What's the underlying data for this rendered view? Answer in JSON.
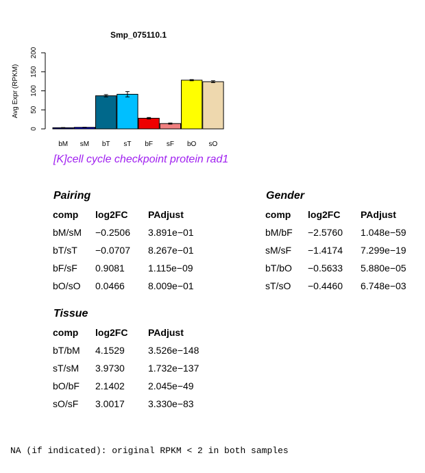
{
  "chart_data": {
    "type": "bar",
    "title": "Smp_075110.1",
    "ylabel": "Avg Expr (RPKM)",
    "xlabel": "",
    "ylim": [
      0,
      200
    ],
    "yticks": [
      0,
      50,
      100,
      150,
      200
    ],
    "categories": [
      "bM",
      "sM",
      "bT",
      "sT",
      "bF",
      "sF",
      "bO",
      "sO"
    ],
    "values": [
      3,
      4,
      87,
      91,
      28,
      14,
      128,
      124
    ],
    "errors": [
      0.5,
      0.5,
      3,
      7,
      2,
      1.5,
      1.5,
      2.5
    ],
    "colors": [
      "#00008b",
      "#0000cd",
      "#00688b",
      "#00bfff",
      "#ee0000",
      "#f08080",
      "#ffff00",
      "#eed8ae"
    ]
  },
  "gene_description": "[K]cell cycle checkpoint protein rad1",
  "tables": {
    "pairing": {
      "title": "Pairing",
      "headers": [
        "comp",
        "log2FC",
        "PAdjust"
      ],
      "rows": [
        [
          "bM/sM",
          "−0.2506",
          "3.891e−01"
        ],
        [
          "bT/sT",
          "−0.0707",
          "8.267e−01"
        ],
        [
          "bF/sF",
          "0.9081",
          "1.115e−09"
        ],
        [
          "bO/sO",
          "0.0466",
          "8.009e−01"
        ]
      ]
    },
    "gender": {
      "title": "Gender",
      "headers": [
        "comp",
        "log2FC",
        "PAdjust"
      ],
      "rows": [
        [
          "bM/bF",
          "−2.5760",
          "1.048e−59"
        ],
        [
          "sM/sF",
          "−1.4174",
          "7.299e−19"
        ],
        [
          "bT/bO",
          "−0.5633",
          "5.880e−05"
        ],
        [
          "sT/sO",
          "−0.4460",
          "6.748e−03"
        ]
      ]
    },
    "tissue": {
      "title": "Tissue",
      "headers": [
        "comp",
        "log2FC",
        "PAdjust"
      ],
      "rows": [
        [
          "bT/bM",
          "4.1529",
          "3.526e−148"
        ],
        [
          "sT/sM",
          "3.9730",
          "1.732e−137"
        ],
        [
          "bO/bF",
          "2.1402",
          "2.045e−49"
        ],
        [
          "sO/sF",
          "3.0017",
          "3.330e−83"
        ]
      ]
    }
  },
  "footnote": "NA (if indicated): original RPKM < 2 in both samples"
}
